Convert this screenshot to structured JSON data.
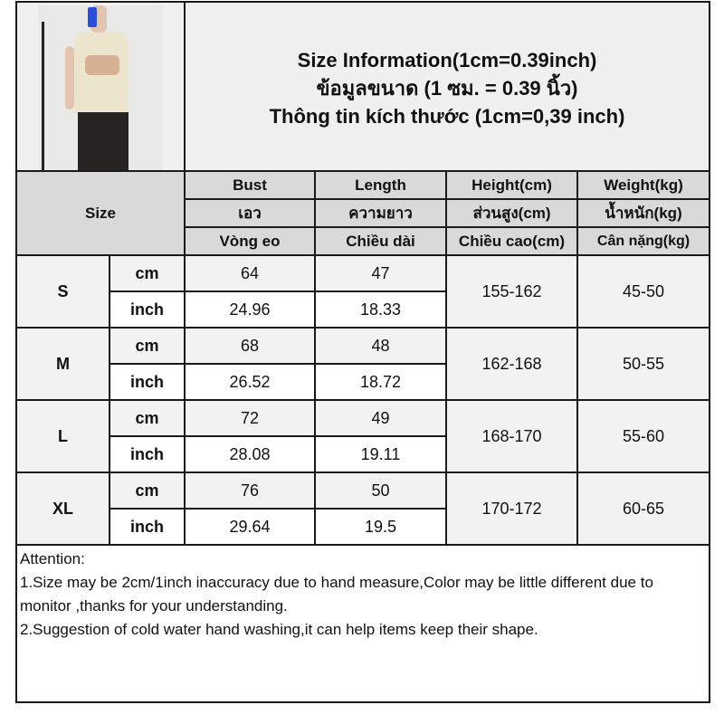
{
  "header": {
    "title_lines": [
      "Size Information(1cm=0.39inch)",
      "ข้อมูลขนาด (1 ซม. = 0.39 นิ้ว)",
      "Thông tin kích thước (1cm=0,39 inch)"
    ],
    "size_label": "Size"
  },
  "columns": [
    {
      "en": "Bust",
      "th": "เอว",
      "vi": "Vòng eo"
    },
    {
      "en": "Length",
      "th": "ความยาว",
      "vi": "Chiều dài"
    },
    {
      "en": "Height(cm)",
      "th": "ส่วนสูง(cm)",
      "vi": "Chiều cao(cm)"
    },
    {
      "en": "Weight(kg)",
      "th": "น้ำหนัก(kg)",
      "vi": "Cân nặng(kg)"
    }
  ],
  "rows": [
    {
      "size": "S",
      "cm_label": "cm",
      "inch_label": "inch",
      "bust_cm": "64",
      "length_cm": "47",
      "bust_in": "24.96",
      "length_in": "18.33",
      "height": "155-162",
      "weight": "45-50"
    },
    {
      "size": "M",
      "cm_label": "cm",
      "inch_label": "inch",
      "bust_cm": "68",
      "length_cm": "48",
      "bust_in": "26.52",
      "length_in": "18.72",
      "height": "162-168",
      "weight": "50-55"
    },
    {
      "size": "L",
      "cm_label": "cm",
      "inch_label": "inch",
      "bust_cm": "72",
      "length_cm": "49",
      "bust_in": "28.08",
      "length_in": "19.11",
      "height": "168-170",
      "weight": "55-60"
    },
    {
      "size": "XL",
      "cm_label": "cm",
      "inch_label": "inch",
      "bust_cm": "76",
      "length_cm": "50",
      "bust_in": "29.64",
      "length_in": "19.5",
      "height": "170-172",
      "weight": "60-65"
    }
  ],
  "attention": {
    "heading": "Attention:",
    "note1": "1.Size may be 2cm/1inch inaccuracy due to hand measure,Color may be little different due to monitor ,thanks for your understanding.",
    "note2": "2.Suggestion of cold water hand washing,it can help items keep their shape."
  }
}
